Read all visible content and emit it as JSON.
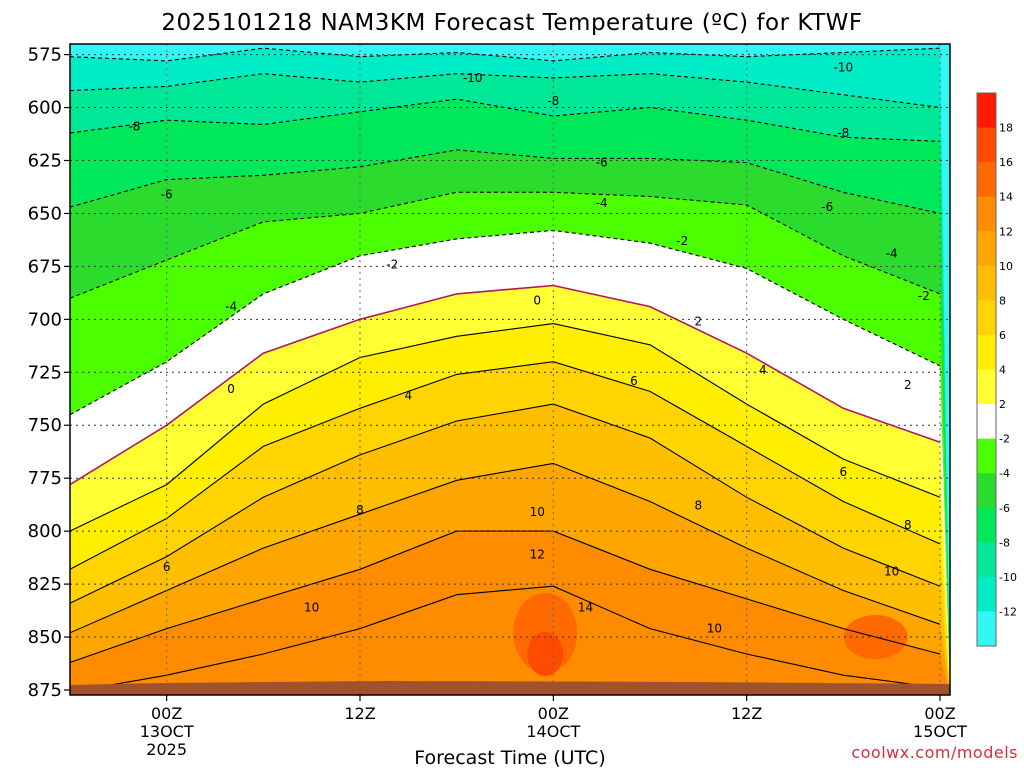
{
  "chart_data": {
    "type": "time-height contour",
    "title": "2025101218 NAM3KM Forecast Temperature (ºC) for KTWF",
    "xlabel": "Forecast Time (UTC)",
    "ylabel": "",
    "credit": "coolwx.com/models",
    "y_axis": {
      "unit": "hPa",
      "inverted": true,
      "range": [
        875,
        570
      ],
      "ticks": [
        "575",
        "600",
        "625",
        "650",
        "675",
        "700",
        "725",
        "750",
        "775",
        "800",
        "825",
        "850",
        "875"
      ]
    },
    "x_axis": {
      "unit": "hours since 2025101218",
      "range": [
        0,
        54
      ],
      "ticks": [
        {
          "hour": 6,
          "lines": [
            "00Z",
            "13OCT",
            "2025"
          ]
        },
        {
          "hour": 18,
          "lines": [
            "12Z",
            "",
            ""
          ]
        },
        {
          "hour": 30,
          "lines": [
            "00Z",
            "14OCT",
            ""
          ]
        },
        {
          "hour": 42,
          "lines": [
            "12Z",
            "",
            ""
          ]
        },
        {
          "hour": 54,
          "lines": [
            "00Z",
            "15OCT",
            ""
          ]
        }
      ]
    },
    "colorbar": {
      "labels": [
        "18",
        "16",
        "14",
        "12",
        "10",
        "8",
        "6",
        "4",
        "2",
        "-2",
        "-4",
        "-6",
        "-8",
        "-10",
        "-12"
      ],
      "colors": [
        "#ff1a00",
        "#ff4a00",
        "#ff6a00",
        "#ff8c00",
        "#ffa500",
        "#ffbe00",
        "#ffd400",
        "#ffee00",
        "#ffff33",
        "#ffffff",
        "#4cff00",
        "#2bdc2f",
        "#00e85a",
        "#00e897",
        "#00ecc6",
        "#33f7f3"
      ]
    },
    "contours": [
      {
        "level": -12,
        "pressure": [
          576,
          578,
          572,
          576,
          574,
          578,
          574,
          576,
          574,
          572
        ]
      },
      {
        "level": -10,
        "pressure": [
          592,
          590,
          584,
          588,
          584,
          586,
          584,
          588,
          594,
          600
        ]
      },
      {
        "level": -8,
        "pressure": [
          612,
          606,
          608,
          602,
          596,
          604,
          600,
          606,
          614,
          616
        ]
      },
      {
        "level": -6,
        "pressure": [
          647,
          634,
          632,
          628,
          620,
          624,
          624,
          626,
          640,
          650
        ]
      },
      {
        "level": -4,
        "pressure": [
          690,
          672,
          654,
          650,
          640,
          640,
          642,
          646,
          670,
          688
        ]
      },
      {
        "level": -2,
        "pressure": [
          745,
          720,
          688,
          670,
          662,
          658,
          664,
          676,
          700,
          722
        ]
      },
      {
        "level": 0,
        "pressure": [
          778,
          750,
          716,
          700,
          688,
          684,
          694,
          716,
          742,
          758
        ]
      },
      {
        "level": 2,
        "pressure": [
          800,
          778,
          740,
          718,
          708,
          702,
          712,
          740,
          766,
          784
        ]
      },
      {
        "level": 4,
        "pressure": [
          818,
          794,
          760,
          742,
          726,
          720,
          734,
          760,
          786,
          806
        ]
      },
      {
        "level": 6,
        "pressure": [
          834,
          812,
          784,
          764,
          748,
          740,
          756,
          784,
          808,
          826
        ]
      },
      {
        "level": 8,
        "pressure": [
          848,
          828,
          808,
          792,
          776,
          768,
          786,
          808,
          828,
          844
        ]
      },
      {
        "level": 10,
        "pressure": [
          862,
          846,
          832,
          818,
          800,
          800,
          818,
          832,
          846,
          858
        ]
      },
      {
        "level": 12,
        "pressure": [
          876,
          868,
          858,
          846,
          830,
          826,
          846,
          858,
          868,
          874
        ]
      }
    ],
    "contour_x_hours": [
      0,
      6,
      12,
      18,
      24,
      30,
      36,
      42,
      48,
      54
    ],
    "contour_labels": [
      {
        "text": "-10",
        "hour": 25,
        "pressure": 586
      },
      {
        "text": "-10",
        "hour": 48,
        "pressure": 581
      },
      {
        "text": "-8",
        "hour": 4,
        "pressure": 609
      },
      {
        "text": "-8",
        "hour": 30,
        "pressure": 597
      },
      {
        "text": "-8",
        "hour": 48,
        "pressure": 612
      },
      {
        "text": "-6",
        "hour": 6,
        "pressure": 641
      },
      {
        "text": "-6",
        "hour": 33,
        "pressure": 626
      },
      {
        "text": "-6",
        "hour": 47,
        "pressure": 647
      },
      {
        "text": "-4",
        "hour": 10,
        "pressure": 694
      },
      {
        "text": "-4",
        "hour": 33,
        "pressure": 645
      },
      {
        "text": "-4",
        "hour": 51,
        "pressure": 669
      },
      {
        "text": "-2",
        "hour": 20,
        "pressure": 674
      },
      {
        "text": "-2",
        "hour": 38,
        "pressure": 663
      },
      {
        "text": "-2",
        "hour": 53,
        "pressure": 689
      },
      {
        "text": "0",
        "hour": 10,
        "pressure": 733
      },
      {
        "text": "0",
        "hour": 29,
        "pressure": 691
      },
      {
        "text": "2",
        "hour": 39,
        "pressure": 701
      },
      {
        "text": "2",
        "hour": 52,
        "pressure": 731
      },
      {
        "text": "4",
        "hour": 21,
        "pressure": 736
      },
      {
        "text": "4",
        "hour": 43,
        "pressure": 724
      },
      {
        "text": "6",
        "hour": 6,
        "pressure": 817
      },
      {
        "text": "6",
        "hour": 35,
        "pressure": 729
      },
      {
        "text": "6",
        "hour": 48,
        "pressure": 772
      },
      {
        "text": "8",
        "hour": 18,
        "pressure": 790
      },
      {
        "text": "8",
        "hour": 39,
        "pressure": 788
      },
      {
        "text": "8",
        "hour": 52,
        "pressure": 797
      },
      {
        "text": "10",
        "hour": 15,
        "pressure": 836
      },
      {
        "text": "10",
        "hour": 29,
        "pressure": 791
      },
      {
        "text": "10",
        "hour": 40,
        "pressure": 846
      },
      {
        "text": "10",
        "hour": 51,
        "pressure": 819
      },
      {
        "text": "12",
        "hour": 29,
        "pressure": 811
      },
      {
        "text": "14",
        "hour": 32,
        "pressure": 836
      }
    ],
    "terrain_pressure": 866,
    "grid": true,
    "legend": "colorbar right"
  }
}
